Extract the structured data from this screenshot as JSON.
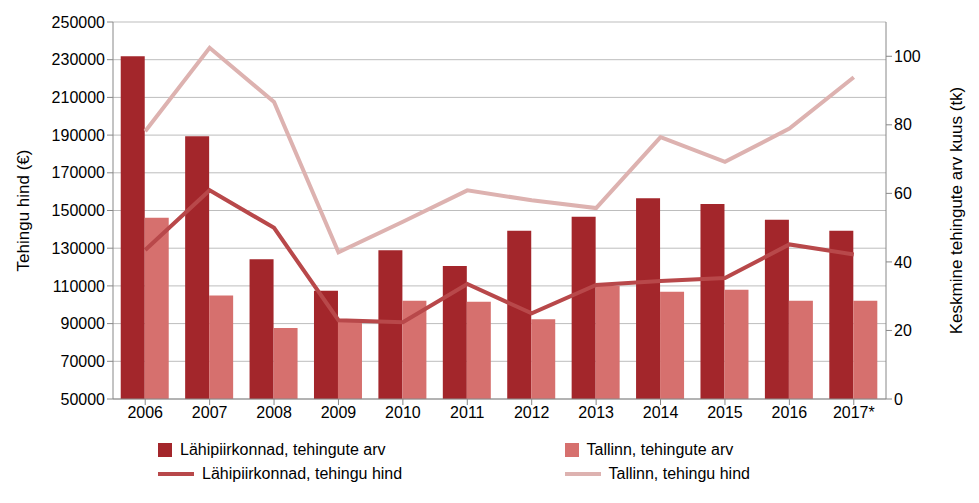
{
  "chart_data": {
    "type": "bar",
    "categories": [
      "2006",
      "2007",
      "2008",
      "2009",
      "2010",
      "2011",
      "2012",
      "2013",
      "2014",
      "2015",
      "2016",
      "2017*"
    ],
    "y_label": "Tehingu hind (€)",
    "y2_label": "Keskmine tehingute arv kuus (tk)",
    "ylim": [
      50000,
      250000
    ],
    "yticks": [
      50000,
      70000,
      90000,
      110000,
      130000,
      150000,
      170000,
      190000,
      210000,
      230000,
      250000
    ],
    "y2lim": [
      0,
      110
    ],
    "y2ticks": [
      0,
      20,
      40,
      60,
      80,
      100
    ],
    "grid": true,
    "legend": "bottom",
    "series": [
      {
        "name": "Lähipiirkonnad, tehingute arv",
        "type": "bar",
        "axis": "y2",
        "color": "#a3262b",
        "values": [
          100,
          76.7,
          40.8,
          31.6,
          43.4,
          38.8,
          49.1,
          53.2,
          58.6,
          56.9,
          52.3,
          49.1
        ]
      },
      {
        "name": "Tallinn, tehingute arv",
        "type": "bar",
        "axis": "y2",
        "color": "#d6706e",
        "values": [
          52.9,
          30.2,
          20.7,
          22.7,
          28.7,
          28.4,
          23.3,
          33,
          31.3,
          31.9,
          28.7,
          28.7
        ]
      },
      {
        "name": "Lähipiirkonnad, tehingu hind",
        "type": "line",
        "axis": "y",
        "color": "#b8484a",
        "values": [
          129000,
          160700,
          140800,
          91800,
          90700,
          111000,
          95400,
          110500,
          112600,
          114200,
          132000,
          126700
        ]
      },
      {
        "name": "Tallinn, tehingu hind",
        "type": "line",
        "axis": "y",
        "color": "#ddb2b0",
        "values": [
          192000,
          236300,
          207600,
          127800,
          144000,
          160700,
          155400,
          151300,
          188900,
          175800,
          193500,
          220700
        ]
      }
    ]
  }
}
